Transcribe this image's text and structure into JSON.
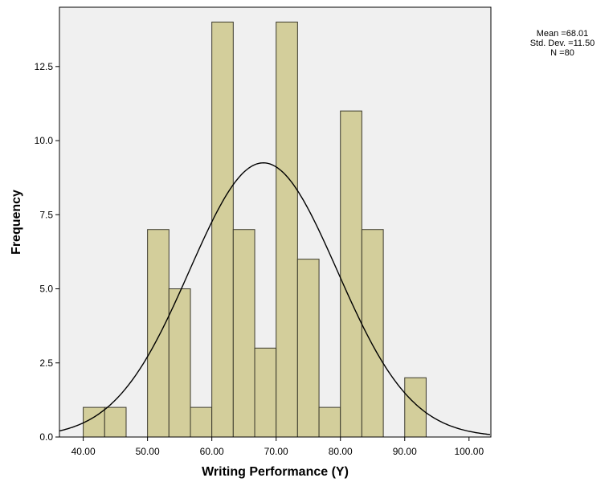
{
  "chart_data": {
    "type": "bar",
    "subtype": "histogram",
    "xlabel": "Writing Performance (Y)",
    "ylabel": "Frequency",
    "xlim": [
      36.3,
      103.4
    ],
    "ylim": [
      0,
      14.5
    ],
    "x_ticks": [
      40,
      50,
      60,
      70,
      80,
      90,
      100
    ],
    "x_tick_labels": [
      "40.00",
      "50.00",
      "60.00",
      "70.00",
      "80.00",
      "90.00",
      "100.00"
    ],
    "y_ticks": [
      0,
      2.5,
      5,
      7.5,
      10,
      12.5
    ],
    "y_tick_labels": [
      "0.0",
      "2.5",
      "5.0",
      "7.5",
      "10.0",
      "12.5"
    ],
    "bin_width": 3.333,
    "bins": [
      {
        "start": 40.0,
        "end": 43.33,
        "count": 1
      },
      {
        "start": 43.33,
        "end": 46.67,
        "count": 1
      },
      {
        "start": 46.67,
        "end": 50.0,
        "count": 0
      },
      {
        "start": 50.0,
        "end": 53.33,
        "count": 7
      },
      {
        "start": 53.33,
        "end": 56.67,
        "count": 5
      },
      {
        "start": 56.67,
        "end": 60.0,
        "count": 1
      },
      {
        "start": 60.0,
        "end": 63.33,
        "count": 14
      },
      {
        "start": 63.33,
        "end": 66.67,
        "count": 7
      },
      {
        "start": 66.67,
        "end": 70.0,
        "count": 3
      },
      {
        "start": 70.0,
        "end": 73.33,
        "count": 14
      },
      {
        "start": 73.33,
        "end": 76.67,
        "count": 6
      },
      {
        "start": 76.67,
        "end": 80.0,
        "count": 1
      },
      {
        "start": 80.0,
        "end": 83.33,
        "count": 11
      },
      {
        "start": 83.33,
        "end": 86.67,
        "count": 7
      },
      {
        "start": 86.67,
        "end": 90.0,
        "count": 0
      },
      {
        "start": 90.0,
        "end": 93.33,
        "count": 2
      }
    ],
    "normal_curve": {
      "mean": 68.01,
      "std_dev": 11.5,
      "n": 80
    },
    "grid": false,
    "colors": {
      "bar_fill": "#d3ce9b",
      "bar_stroke": "#3c3a2c",
      "plot_bg": "#f0f0f0",
      "curve": "#000000"
    }
  },
  "stats": {
    "mean": "Mean =68.01",
    "std_dev": "Std. Dev. =11.50",
    "n": "N =80"
  }
}
